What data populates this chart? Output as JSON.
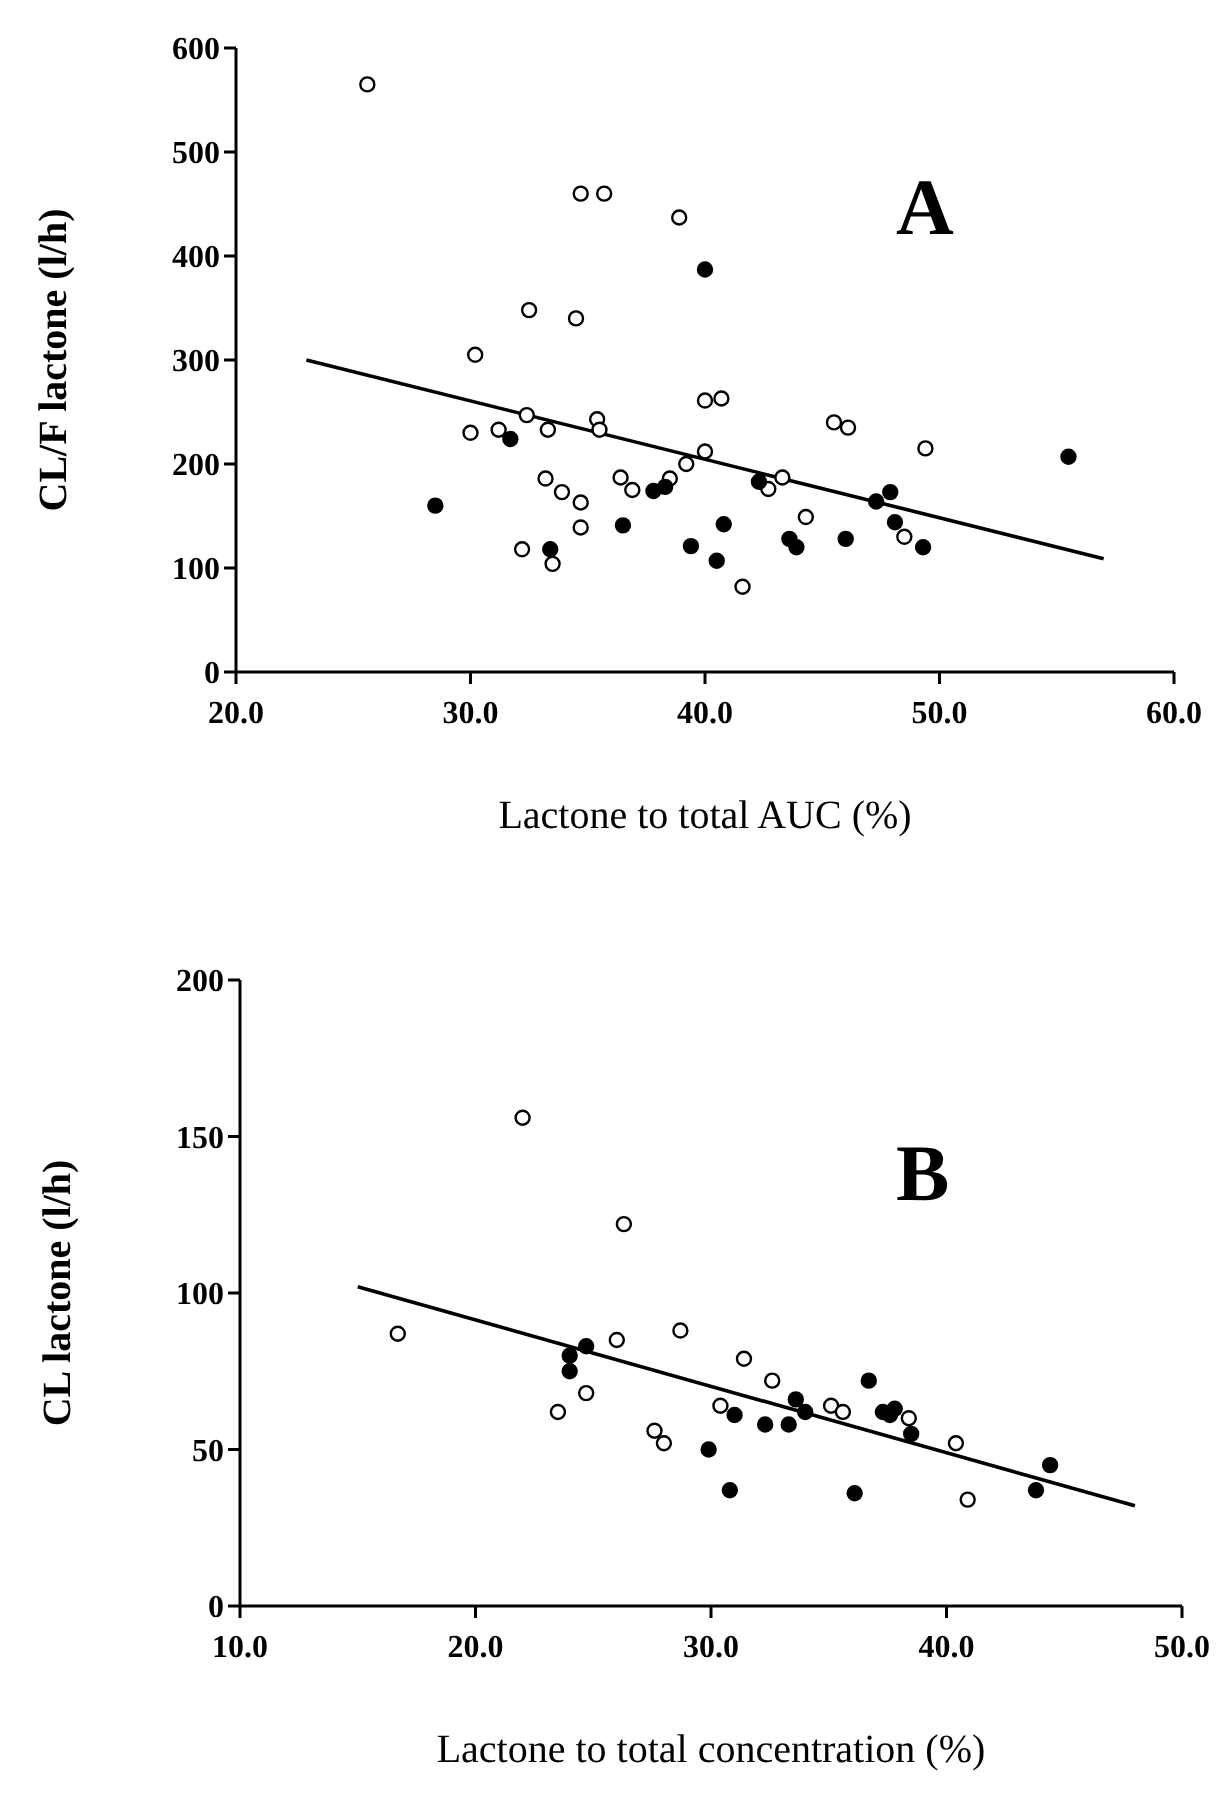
{
  "chart_data": [
    {
      "type": "scatter",
      "title": "A",
      "xlabel": "Lactone to total AUC (%)",
      "ylabel": "CL/F lactone (l/h)",
      "marker": "circle",
      "xlim": [
        20,
        60
      ],
      "ylim": [
        0,
        600
      ],
      "xticks": [
        {
          "value": 20,
          "label": "20.0"
        },
        {
          "value": 30,
          "label": "30.0"
        },
        {
          "value": 40,
          "label": "40.0"
        },
        {
          "value": 50,
          "label": "50.0"
        },
        {
          "value": 60,
          "label": "60.0"
        }
      ],
      "yticks": [
        0,
        100,
        200,
        300,
        400,
        500,
        600
      ],
      "series": [
        {
          "color": "#ffffff",
          "x": [
            25.6,
            34.7,
            35.7,
            38.9,
            32.5,
            34.5,
            30.2,
            32.4,
            30.0,
            31.2,
            33.3,
            35.4,
            35.5,
            40.0,
            40.7,
            40.0,
            39.2,
            33.2,
            33.9,
            34.7,
            34.7,
            36.4,
            36.9,
            38.5,
            32.2,
            33.5,
            45.5,
            46.1,
            49.4,
            43.3,
            42.7,
            44.3,
            48.5,
            41.6
          ],
          "values": [
            565,
            460,
            460,
            437,
            348,
            340,
            305,
            247,
            230,
            233,
            233,
            243,
            233,
            261,
            263,
            212,
            200,
            186,
            173,
            163,
            139,
            187,
            175,
            186,
            118,
            104,
            240,
            235,
            215,
            187,
            176,
            149,
            130,
            82
          ]
        },
        {
          "color": "#000000",
          "x": [
            28.5,
            31.7,
            33.4,
            36.5,
            37.8,
            38.3,
            40.0,
            39.4,
            40.8,
            40.5,
            42.3,
            43.6,
            43.9,
            46.0,
            47.3,
            47.9,
            48.1,
            49.3,
            55.5
          ],
          "values": [
            160,
            224,
            118,
            141,
            174,
            178,
            387,
            121,
            142,
            107,
            183,
            128,
            120,
            128,
            164,
            173,
            144,
            120,
            207
          ]
        },
        {
          "type": "line",
          "color": "#000000",
          "marker": "none",
          "x": [
            23,
            57
          ],
          "values": [
            300,
            109
          ]
        }
      ]
    },
    {
      "type": "scatter",
      "title": "B",
      "xlabel": "Lactone to total concentration (%)",
      "ylabel": "CL lactone (l/h)",
      "marker": "circle",
      "xlim": [
        10,
        50
      ],
      "ylim": [
        0,
        200
      ],
      "xticks": [
        {
          "value": 10,
          "label": "10.0"
        },
        {
          "value": 20,
          "label": "20.0"
        },
        {
          "value": 30,
          "label": "30.0"
        },
        {
          "value": 40,
          "label": "40.0"
        },
        {
          "value": 50,
          "label": "50.0"
        }
      ],
      "yticks": [
        0,
        50,
        100,
        150,
        200
      ],
      "series": [
        {
          "color": "#ffffff",
          "x": [
            22.0,
            26.3,
            16.7,
            26.0,
            28.7,
            24.7,
            23.5,
            27.6,
            28.0,
            30.4,
            31.4,
            32.6,
            35.1,
            35.6,
            38.4,
            40.4,
            40.9
          ],
          "values": [
            156,
            122,
            87,
            85,
            88,
            68,
            62,
            56,
            52,
            64,
            79,
            72,
            64,
            62,
            60,
            52,
            34
          ]
        },
        {
          "color": "#000000",
          "x": [
            24.7,
            24.0,
            24.0,
            29.9,
            31.0,
            30.8,
            32.3,
            33.3,
            33.6,
            34.0,
            36.7,
            36.1,
            37.3,
            37.8,
            37.6,
            38.5,
            43.8,
            44.4
          ],
          "values": [
            83,
            80,
            75,
            50,
            61,
            37,
            58,
            58,
            66,
            62,
            72,
            36,
            62,
            63,
            61,
            55,
            37,
            45
          ]
        },
        {
          "type": "line",
          "color": "#000000",
          "marker": "none",
          "x": [
            15,
            48
          ],
          "values": [
            102,
            32
          ]
        }
      ]
    }
  ]
}
